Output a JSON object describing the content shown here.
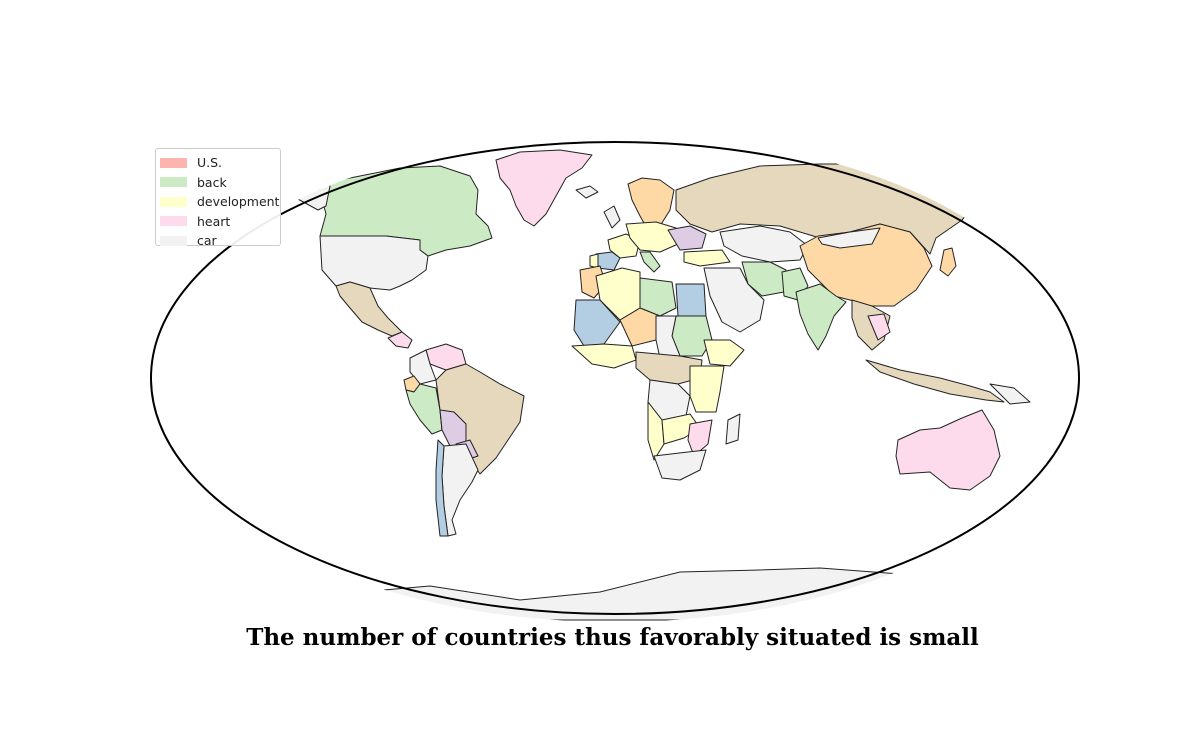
{
  "title": "The number of countries thus favorably situated is small",
  "legend": [
    {
      "label": "U.S.",
      "color": "#fbb4ae"
    },
    {
      "label": "back",
      "color": "#ccebc5"
    },
    {
      "label": "development",
      "color": "#ffffcc"
    },
    {
      "label": "heart",
      "color": "#fddaec"
    },
    {
      "label": "car",
      "color": "#f2f2f2"
    }
  ],
  "other_colors": {
    "tan": "#e5d8bd",
    "orange": "#fed9a6",
    "blue": "#b3cde3",
    "lilac": "#decbe4",
    "ocean": "#ffffff",
    "border": "#222222"
  }
}
